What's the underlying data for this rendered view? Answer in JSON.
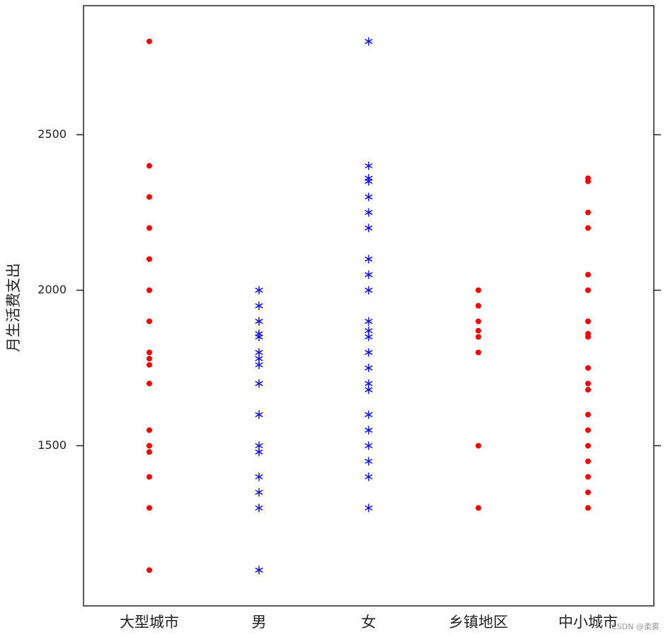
{
  "chart_data": {
    "type": "strip",
    "ylabel": "月生活费支出",
    "categories": [
      "大型城市",
      "男",
      "女",
      "乡镇地区",
      "中小城市"
    ],
    "colors": [
      "#ff0000",
      "#0000ff",
      "#0000ff",
      "#ff0000",
      "#ff0000"
    ],
    "markers": [
      "dot",
      "asterisk",
      "asterisk",
      "dot",
      "dot"
    ],
    "values": [
      [
        2800,
        2400,
        2300,
        2200,
        2100,
        2000,
        1900,
        1800,
        1780,
        1760,
        1700,
        1550,
        1500,
        1480,
        1400,
        1300,
        1100
      ],
      [
        2000,
        1950,
        1900,
        1860,
        1850,
        1800,
        1780,
        1760,
        1700,
        1600,
        1500,
        1480,
        1400,
        1350,
        1300,
        1100
      ],
      [
        2800,
        2400,
        2360,
        2350,
        2300,
        2250,
        2200,
        2100,
        2050,
        2000,
        1900,
        1870,
        1850,
        1800,
        1750,
        1700,
        1680,
        1600,
        1550,
        1500,
        1450,
        1400,
        1300
      ],
      [
        2000,
        1950,
        1900,
        1870,
        1850,
        1800,
        1500,
        1300
      ],
      [
        2360,
        2350,
        2250,
        2200,
        2050,
        2000,
        1900,
        1860,
        1850,
        1750,
        1700,
        1680,
        1600,
        1550,
        1500,
        1450,
        1400,
        1350,
        1300
      ]
    ],
    "ylim": [
      985,
      2915
    ],
    "yticks": [
      1500,
      2000,
      2500
    ],
    "watermark": "CSDN @柔雾"
  }
}
